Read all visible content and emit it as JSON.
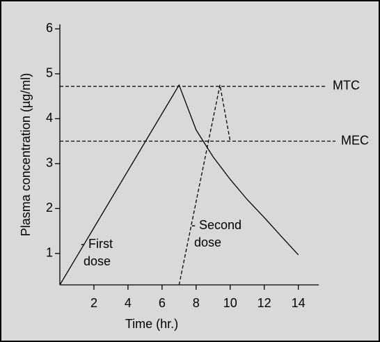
{
  "chart_data": {
    "type": "line",
    "x_label": "Time (hr.)",
    "y_label": "Plasma concentration (µg/ml)",
    "xlim": [
      0,
      15.2
    ],
    "ylim": [
      0.3,
      6.1
    ],
    "xticks": [
      2,
      4,
      6,
      8,
      10,
      12,
      14
    ],
    "yticks": [
      1,
      2,
      3,
      4,
      5,
      6
    ],
    "series": [
      {
        "color": "#000000",
        "dashed": false,
        "x": [
          0,
          7,
          8,
          9,
          10,
          11,
          12,
          13,
          14
        ],
        "y": [
          0.3,
          4.75,
          3.75,
          3.15,
          2.65,
          2.2,
          1.8,
          1.38,
          0.97
        ]
      },
      {
        "color": "#000000",
        "dashed": true,
        "x": [
          7,
          9.4,
          10
        ],
        "y": [
          0.3,
          4.75,
          3.5
        ]
      }
    ],
    "reference_lines": [
      {
        "label": "MTC",
        "value": 4.72
      },
      {
        "label": "MEC",
        "value": 3.5
      }
    ],
    "annotations": [
      {
        "lines": [
          "- First",
          "dose"
        ]
      },
      {
        "lines": [
          "- Second",
          "dose"
        ]
      }
    ]
  }
}
